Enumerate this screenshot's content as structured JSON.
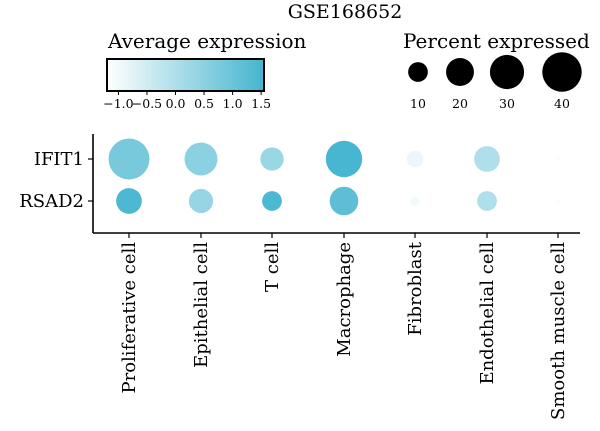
{
  "chart_data": {
    "type": "dotplot",
    "title": "GSE168652",
    "genes": [
      "IFIT1",
      "RSAD2"
    ],
    "cell_types": [
      "Proliferative cell",
      "Epithelial cell",
      "T cell",
      "Macrophage",
      "Fibroblast",
      "Endothelial cell",
      "Smooth muscle cell"
    ],
    "color_legend": {
      "title": "Average expression",
      "ticks": [
        "−1.0",
        "−0.5",
        "0.0",
        "0.5",
        "1.0",
        "1.5"
      ],
      "range": [
        -1.2,
        1.55
      ],
      "low_color": "#ffffff",
      "high_color": "#45b5cf"
    },
    "size_legend": {
      "title": "Percent expressed",
      "values": [
        10,
        20,
        30,
        40
      ],
      "labels": [
        "10",
        "20",
        "30",
        "40"
      ],
      "color": "#000000"
    },
    "points": [
      {
        "gene": "IFIT1",
        "cell_type": "Proliferative cell",
        "avg_expression": 0.8,
        "pct_expressed": 43
      },
      {
        "gene": "IFIT1",
        "cell_type": "Epithelial cell",
        "avg_expression": 0.5,
        "pct_expressed": 28
      },
      {
        "gene": "IFIT1",
        "cell_type": "T cell",
        "avg_expression": 0.3,
        "pct_expressed": 14
      },
      {
        "gene": "IFIT1",
        "cell_type": "Macrophage",
        "avg_expression": 1.5,
        "pct_expressed": 34
      },
      {
        "gene": "IFIT1",
        "cell_type": "Fibroblast",
        "avg_expression": -0.9,
        "pct_expressed": 7
      },
      {
        "gene": "IFIT1",
        "cell_type": "Endothelial cell",
        "avg_expression": 0.0,
        "pct_expressed": 17
      },
      {
        "gene": "IFIT1",
        "cell_type": "Smooth muscle cell",
        "avg_expression": -1.1,
        "pct_expressed": 0.5
      },
      {
        "gene": "RSAD2",
        "cell_type": "Proliferative cell",
        "avg_expression": 1.45,
        "pct_expressed": 17
      },
      {
        "gene": "RSAD2",
        "cell_type": "Epithelial cell",
        "avg_expression": 0.35,
        "pct_expressed": 15
      },
      {
        "gene": "RSAD2",
        "cell_type": "T cell",
        "avg_expression": 1.45,
        "pct_expressed": 10
      },
      {
        "gene": "RSAD2",
        "cell_type": "Macrophage",
        "avg_expression": 1.2,
        "pct_expressed": 21
      },
      {
        "gene": "RSAD2",
        "cell_type": "Fibroblast",
        "avg_expression": -1.0,
        "pct_expressed": 2
      },
      {
        "gene": "RSAD2",
        "cell_type": "Endothelial cell",
        "avg_expression": 0.0,
        "pct_expressed": 10
      },
      {
        "gene": "RSAD2",
        "cell_type": "Smooth muscle cell",
        "avg_expression": -1.1,
        "pct_expressed": 0.5
      }
    ]
  }
}
